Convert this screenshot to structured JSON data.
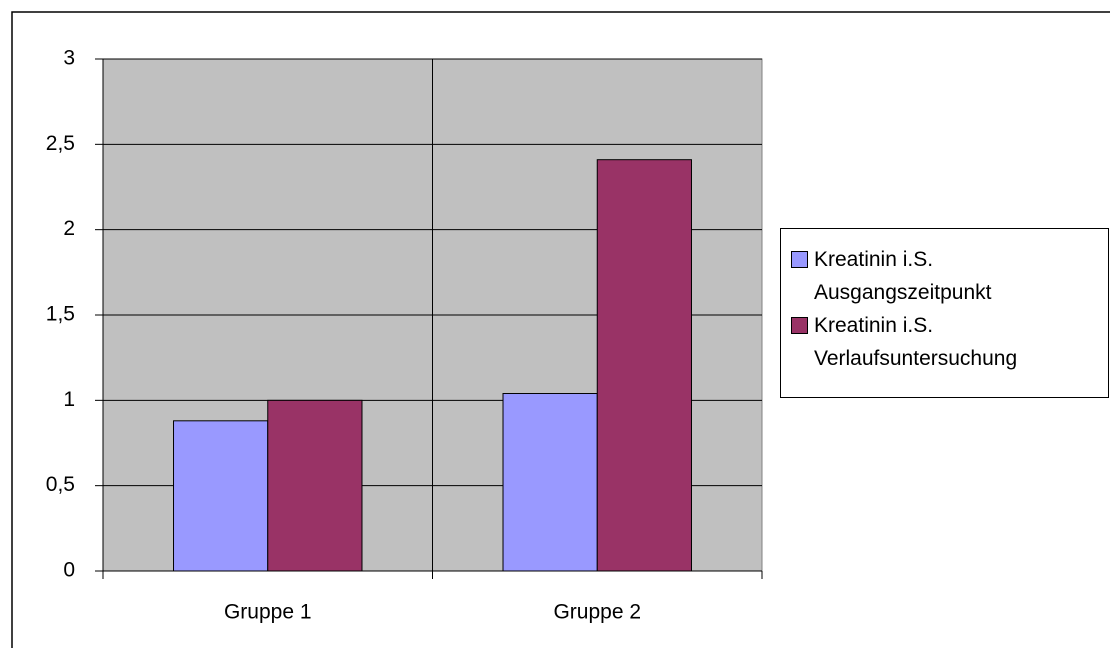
{
  "chart_data": {
    "type": "bar",
    "categories": [
      "Gruppe 1",
      "Gruppe 2"
    ],
    "series": [
      {
        "name": "Kreatinin i.S. Ausgangszeitpunkt",
        "color": "#9999ff",
        "values": [
          0.88,
          1.04
        ]
      },
      {
        "name": "Kreatinin i.S. Verlaufsuntersuchung",
        "color": "#993366",
        "values": [
          1.0,
          2.41
        ]
      }
    ],
    "ylim": [
      0,
      3
    ],
    "yticks": [
      0,
      {
        "value": 0.5,
        "label": "0,5"
      },
      1,
      {
        "value": 1.5,
        "label": "1,5"
      },
      2,
      {
        "value": 2.5,
        "label": "2,5"
      },
      3
    ],
    "grid": true,
    "legend": "right",
    "plot_background": "#c0c0c0"
  }
}
